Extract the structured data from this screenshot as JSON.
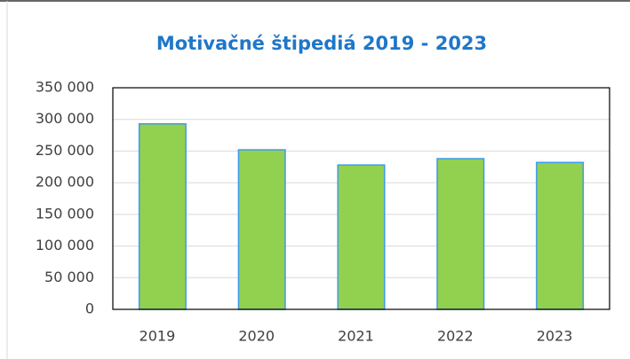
{
  "chart_data": {
    "type": "bar",
    "title": "Motivačné štipediá 2019 - 2023",
    "categories": [
      "2019",
      "2020",
      "2021",
      "2022",
      "2023"
    ],
    "values": [
      293000,
      252000,
      228000,
      238000,
      232000
    ],
    "color": "#92d050",
    "edge_color": "#3d9be9",
    "ylim": [
      0,
      350000
    ],
    "yticks": [
      0,
      {
        "value": 50000,
        "label": "50 000"
      },
      {
        "value": 100000,
        "label": "100 000"
      },
      {
        "value": 150000,
        "label": "150 000"
      },
      {
        "value": 200000,
        "label": "200 000"
      },
      {
        "value": 250000,
        "label": "250 000"
      },
      {
        "value": 300000,
        "label": "300 000"
      },
      {
        "value": 350000,
        "label": "350 000"
      }
    ],
    "grid": true
  }
}
